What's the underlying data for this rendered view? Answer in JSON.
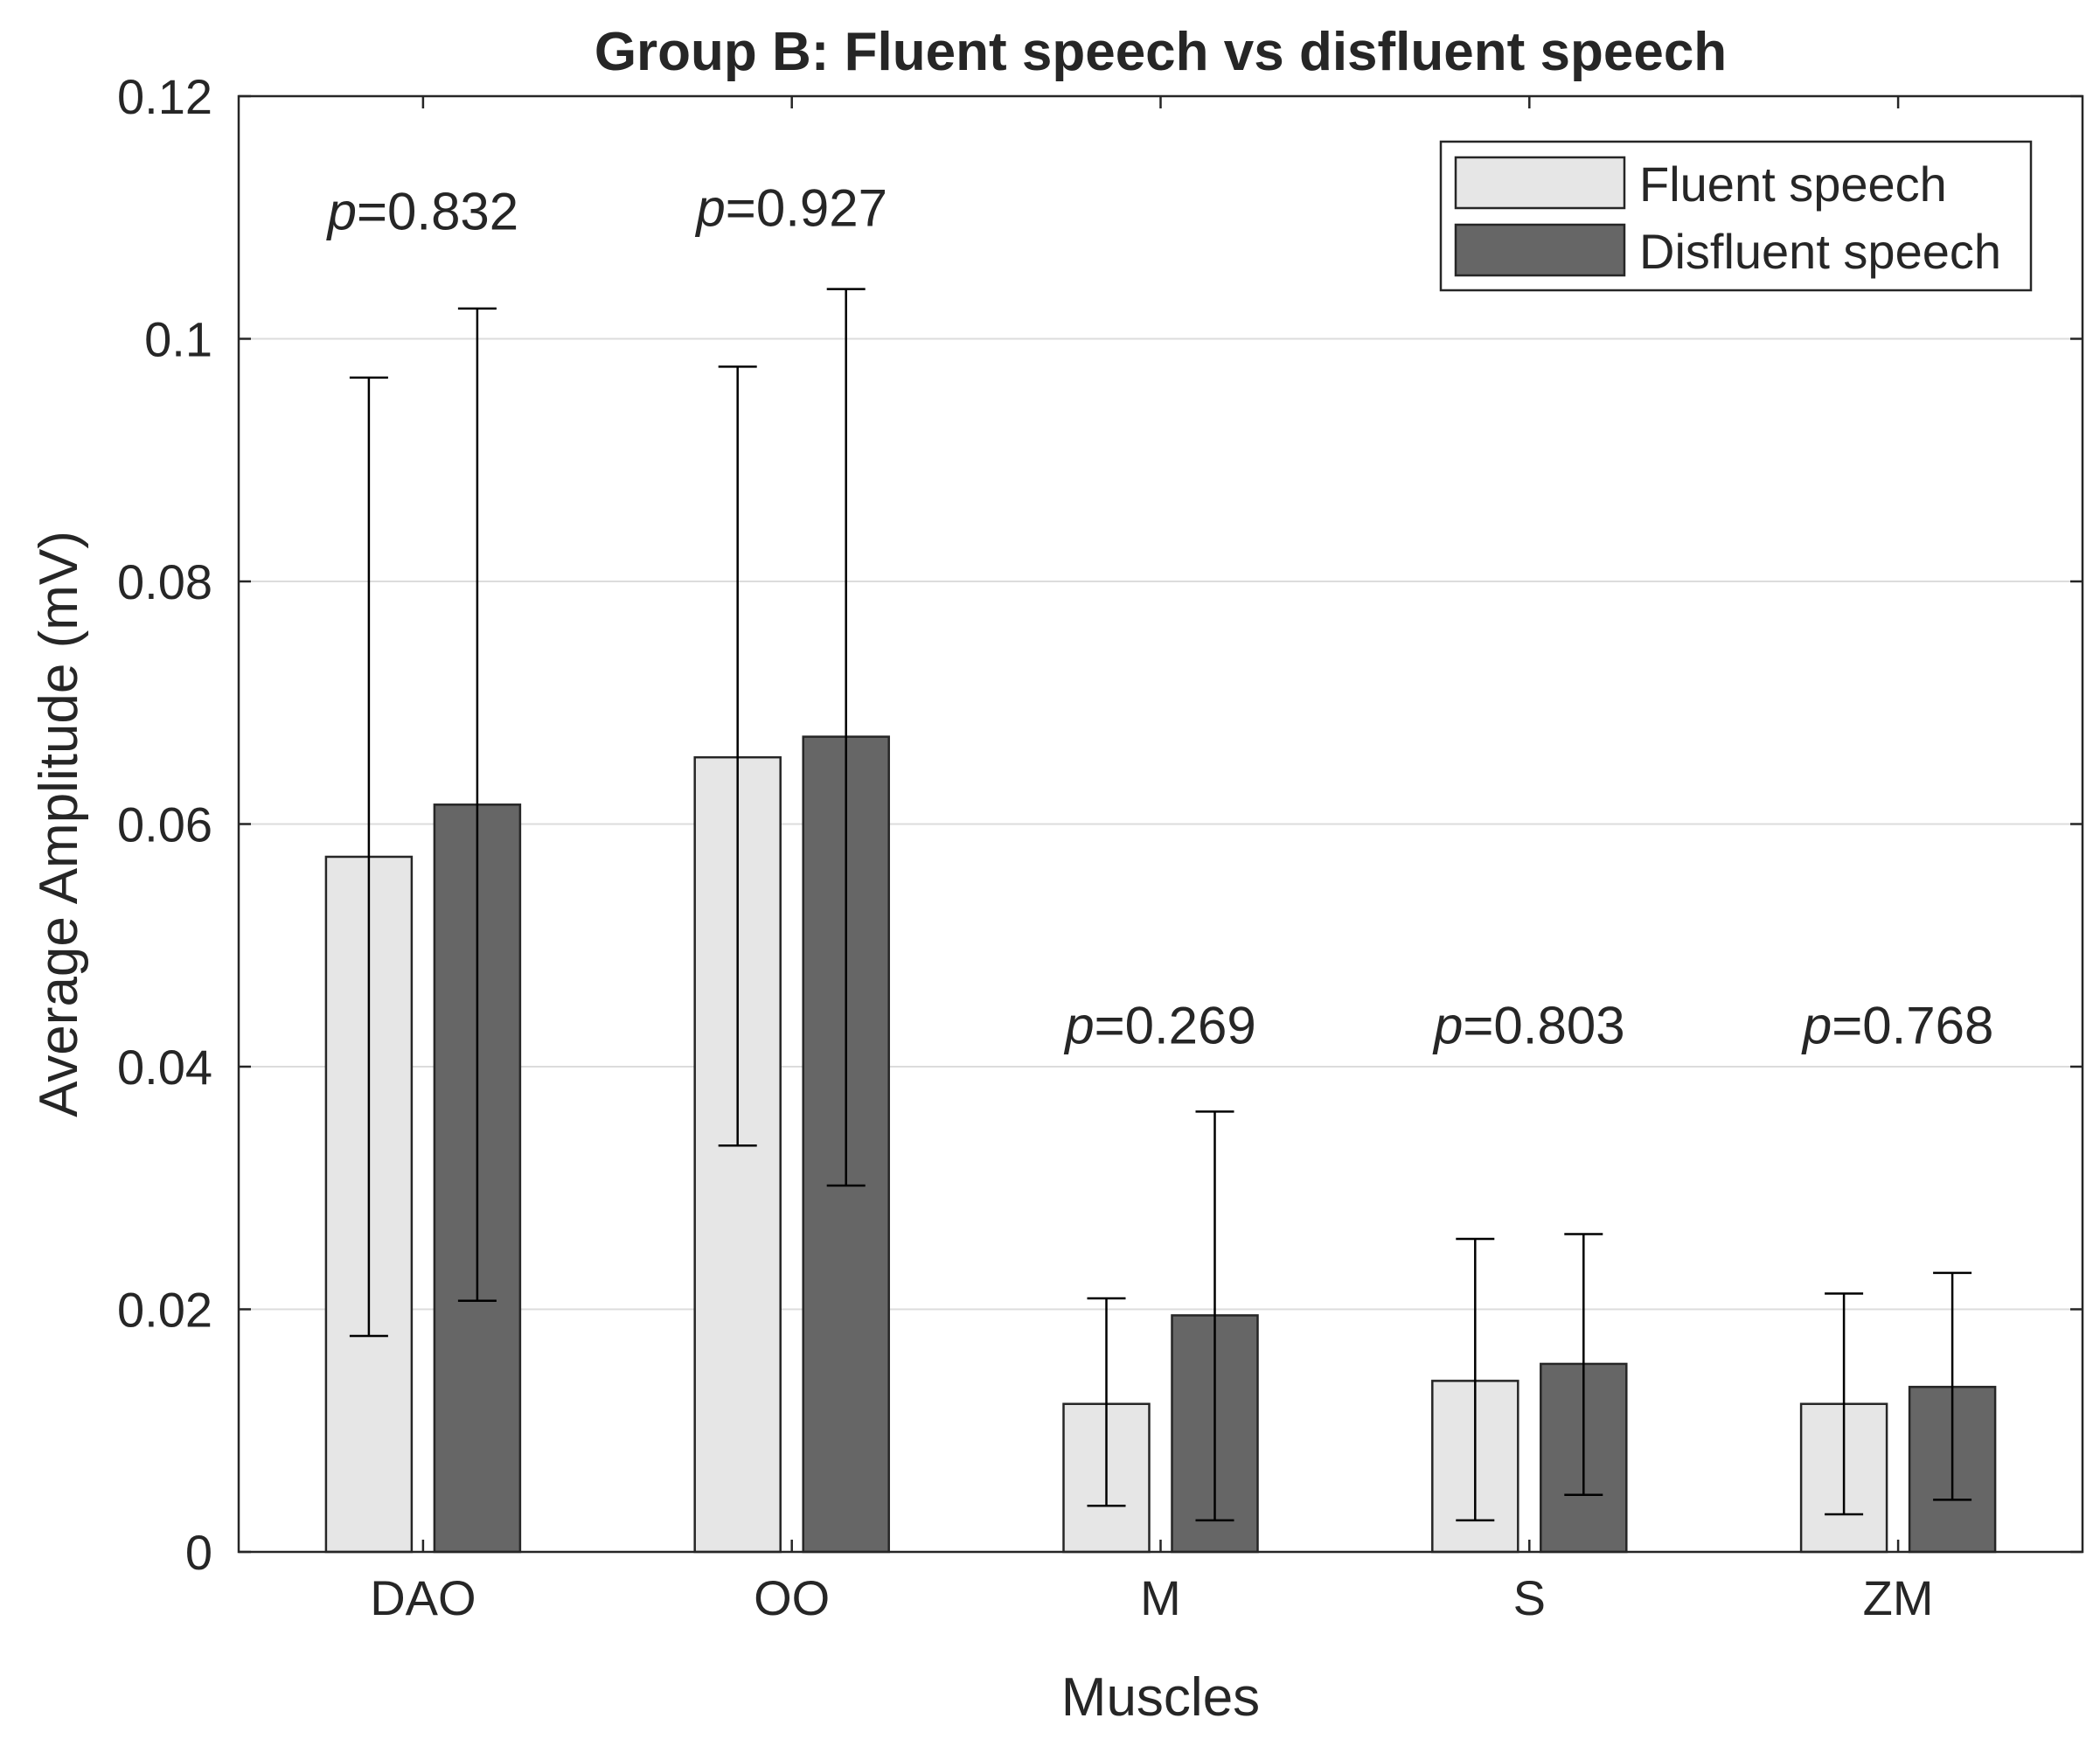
{
  "chart_data": {
    "type": "bar",
    "title": "Group B: Fluent speech vs disfluent speech",
    "xlabel": "Muscles",
    "ylabel": "Average Amplitude (mV)",
    "ylim": [
      0,
      0.12
    ],
    "yticks": [
      "0",
      "0.02",
      "0.04",
      "0.06",
      "0.08",
      "0.1",
      "0.12"
    ],
    "ytick_values": [
      0,
      0.02,
      0.04,
      0.06,
      0.08,
      0.1,
      0.12
    ],
    "grid": true,
    "legend_position": "top-right",
    "categories": [
      "DAO",
      "OO",
      "M",
      "S",
      "ZM"
    ],
    "series": [
      {
        "name": "Fluent speech",
        "color": "#e6e6e6",
        "values": [
          0.0573,
          0.0655,
          0.0122,
          0.0141,
          0.0122
        ],
        "error_low": [
          0.0178,
          0.0335,
          0.0038,
          0.0026,
          0.0031
        ],
        "error_high": [
          0.0968,
          0.0977,
          0.0209,
          0.0258,
          0.0213
        ]
      },
      {
        "name": "Disfluent speech",
        "color": "#666666",
        "values": [
          0.0616,
          0.0672,
          0.0195,
          0.0155,
          0.0136
        ],
        "error_low": [
          0.0207,
          0.0302,
          0.0026,
          0.0047,
          0.0043
        ],
        "error_high": [
          0.1025,
          0.1041,
          0.0363,
          0.0262,
          0.023
        ]
      }
    ],
    "annotations": [
      {
        "category": "DAO",
        "prefix": "p",
        "text": "=0.832",
        "y": 0.109
      },
      {
        "category": "OO",
        "prefix": "p",
        "text": "=0.927",
        "y": 0.1093
      },
      {
        "category": "M",
        "prefix": "p",
        "text": "=0.269",
        "y": 0.0419
      },
      {
        "category": "S",
        "prefix": "p",
        "text": "=0.803",
        "y": 0.0419
      },
      {
        "category": "ZM",
        "prefix": "p",
        "text": "=0.768",
        "y": 0.0419
      }
    ]
  }
}
